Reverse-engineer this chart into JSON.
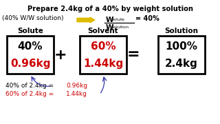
{
  "title": "Prepare 2.4kg of a 40% by weight solution",
  "subtitle": "(40% W/W solution)",
  "formula_equals": "= 40%",
  "solute_label": "Solute",
  "solvent_label": "Solvent",
  "solution_label": "Solution",
  "solute_pct": "40%",
  "solute_kg": "0.96kg",
  "solvent_pct": "60%",
  "solvent_kg": "1.44kg",
  "solution_pct": "100%",
  "solution_kg": "2.4kg",
  "plus_sign": "+",
  "equals_sign": "=",
  "note1_black": "40% of 2.4kg = ",
  "note1_red": "0.96kg",
  "note2_red_start": "60% of 2.4kg = ",
  "note2_red": "1.44kg",
  "bg_color": "#ffffff",
  "box_color": "#000000",
  "red_color": "#cc0000",
  "black_color": "#000000",
  "arrow_yellow": "#ddbb00",
  "blue_color": "#3333aa"
}
